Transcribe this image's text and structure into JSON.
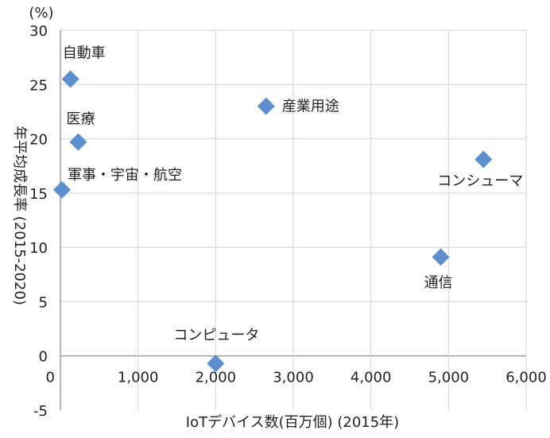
{
  "chart_data": {
    "type": "scatter",
    "title": "",
    "xlabel": "IoTデバイス数(百万個) (2015年)",
    "ylabel": "年平均成長率 (2015-2020)",
    "yunit": "(%)",
    "xlim": [
      0,
      6000
    ],
    "ylim": [
      -5,
      30
    ],
    "xticks": [
      0,
      1000,
      2000,
      3000,
      4000,
      5000,
      6000
    ],
    "xtick_labels": [
      "0",
      "1,000",
      "2,000",
      "3,000",
      "4,000",
      "5,000",
      "6,000"
    ],
    "yticks": [
      -5,
      0,
      5,
      10,
      15,
      20,
      25,
      30
    ],
    "ytick_labels": [
      "-5",
      "0",
      "5",
      "10",
      "15",
      "20",
      "25",
      "30"
    ],
    "grid": true,
    "legend": "none",
    "marker": "diamond",
    "marker_color": "#5b8fd0",
    "points": [
      {
        "label": "自動車",
        "x": 130,
        "y": 25.5
      },
      {
        "label": "医療",
        "x": 230,
        "y": 19.7
      },
      {
        "label": "軍事・宇宙・航空",
        "x": 20,
        "y": 15.3
      },
      {
        "label": "産業用途",
        "x": 2650,
        "y": 23.0
      },
      {
        "label": "コンシューマ",
        "x": 5450,
        "y": 18.1
      },
      {
        "label": "通信",
        "x": 4900,
        "y": 9.1
      },
      {
        "label": "コンピュータ",
        "x": 2000,
        "y": -0.7
      }
    ]
  }
}
